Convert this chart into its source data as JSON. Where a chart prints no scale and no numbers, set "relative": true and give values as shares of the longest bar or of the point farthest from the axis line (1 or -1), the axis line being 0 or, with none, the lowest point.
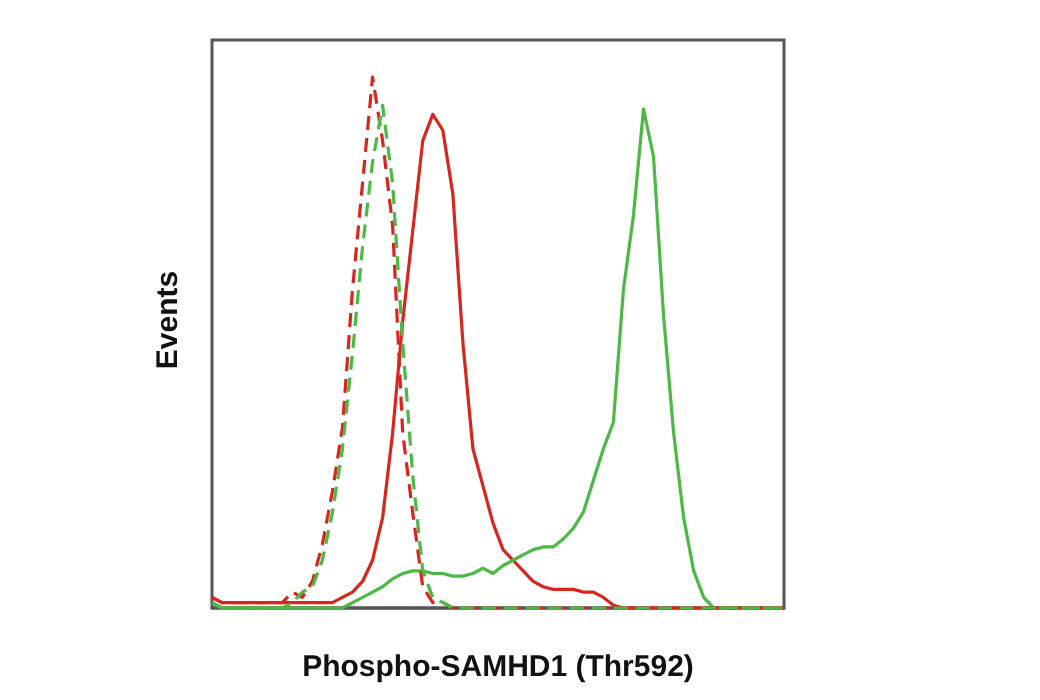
{
  "chart_data": {
    "type": "line",
    "relative": true,
    "xlabel": "Phospho-SAMHD1 (Thr592)",
    "ylabel": "Events",
    "grid": false,
    "categories": [
      null,
      null,
      null,
      null,
      null,
      null,
      null,
      null,
      null,
      null,
      null,
      null,
      null,
      null,
      null,
      null,
      null,
      null,
      null,
      null,
      null,
      null,
      null,
      null,
      null,
      null,
      null,
      null,
      null,
      null,
      null,
      null,
      null,
      null,
      null,
      null,
      null,
      null,
      null,
      null,
      null,
      null,
      null,
      null,
      null,
      null,
      null,
      null,
      null,
      null,
      null,
      null,
      null,
      null,
      null,
      null,
      null,
      null
    ],
    "series": [
      {
        "color": "#d7261e",
        "line_style": "solid",
        "values": [
          0.02,
          0.01,
          0.01,
          0.01,
          0.01,
          0.01,
          0.01,
          0.01,
          0.01,
          0.01,
          0.01,
          0.01,
          0.01,
          0.02,
          0.03,
          0.05,
          0.09,
          0.17,
          0.33,
          0.54,
          0.71,
          0.88,
          0.93,
          0.9,
          0.78,
          0.5,
          0.3,
          0.23,
          0.16,
          0.11,
          0.09,
          0.07,
          0.05,
          0.04,
          0.035,
          0.035,
          0.035,
          0.03,
          0.03,
          0.02,
          0.005,
          0,
          0,
          0,
          0,
          0,
          0,
          0,
          0,
          0,
          0,
          0,
          0,
          0,
          0,
          0,
          0,
          0
        ]
      },
      {
        "color": "#4cb944",
        "line_style": "solid",
        "values": [
          0.01,
          0,
          0,
          0,
          0,
          0,
          0,
          0,
          0,
          0,
          0,
          0,
          0,
          0,
          0.01,
          0.02,
          0.03,
          0.04,
          0.055,
          0.065,
          0.07,
          0.07,
          0.065,
          0.065,
          0.06,
          0.06,
          0.065,
          0.075,
          0.065,
          0.08,
          0.09,
          0.1,
          0.11,
          0.115,
          0.115,
          0.13,
          0.15,
          0.18,
          0.24,
          0.3,
          0.35,
          0.6,
          0.74,
          0.94,
          0.85,
          0.55,
          0.33,
          0.17,
          0.07,
          0.02,
          0,
          0,
          0,
          0,
          0,
          0,
          0,
          0
        ]
      },
      {
        "color": "#d7261e",
        "line_style": "dashed",
        "values": [
          0.02,
          0.01,
          0.01,
          0.01,
          0.01,
          0.01,
          0.01,
          0.01,
          0.03,
          0.02,
          0.05,
          0.12,
          0.22,
          0.34,
          0.6,
          0.8,
          1.0,
          0.88,
          0.72,
          0.33,
          0.18,
          0.04,
          0.01,
          0.01,
          0,
          0,
          0,
          0,
          0,
          0,
          0,
          0,
          0,
          0,
          0,
          0,
          0,
          0,
          0,
          0,
          0,
          0,
          0,
          0,
          0,
          0,
          0,
          0,
          0,
          0,
          0,
          0,
          0,
          0,
          0,
          0,
          0,
          0
        ]
      },
      {
        "color": "#4cb944",
        "line_style": "dashed",
        "values": [
          0.01,
          0,
          0,
          0,
          0,
          0,
          0,
          0,
          0.01,
          0.03,
          0.04,
          0.09,
          0.18,
          0.3,
          0.48,
          0.68,
          0.84,
          0.947,
          0.8,
          0.5,
          0.25,
          0.07,
          0.02,
          0.01,
          0,
          0,
          0,
          0,
          0,
          0,
          0,
          0,
          0,
          0,
          0,
          0,
          0,
          0,
          0,
          0,
          0,
          0,
          0,
          0,
          0,
          0,
          0,
          0,
          0,
          0,
          0,
          0,
          0,
          0,
          0,
          0,
          0,
          0
        ]
      }
    ]
  }
}
